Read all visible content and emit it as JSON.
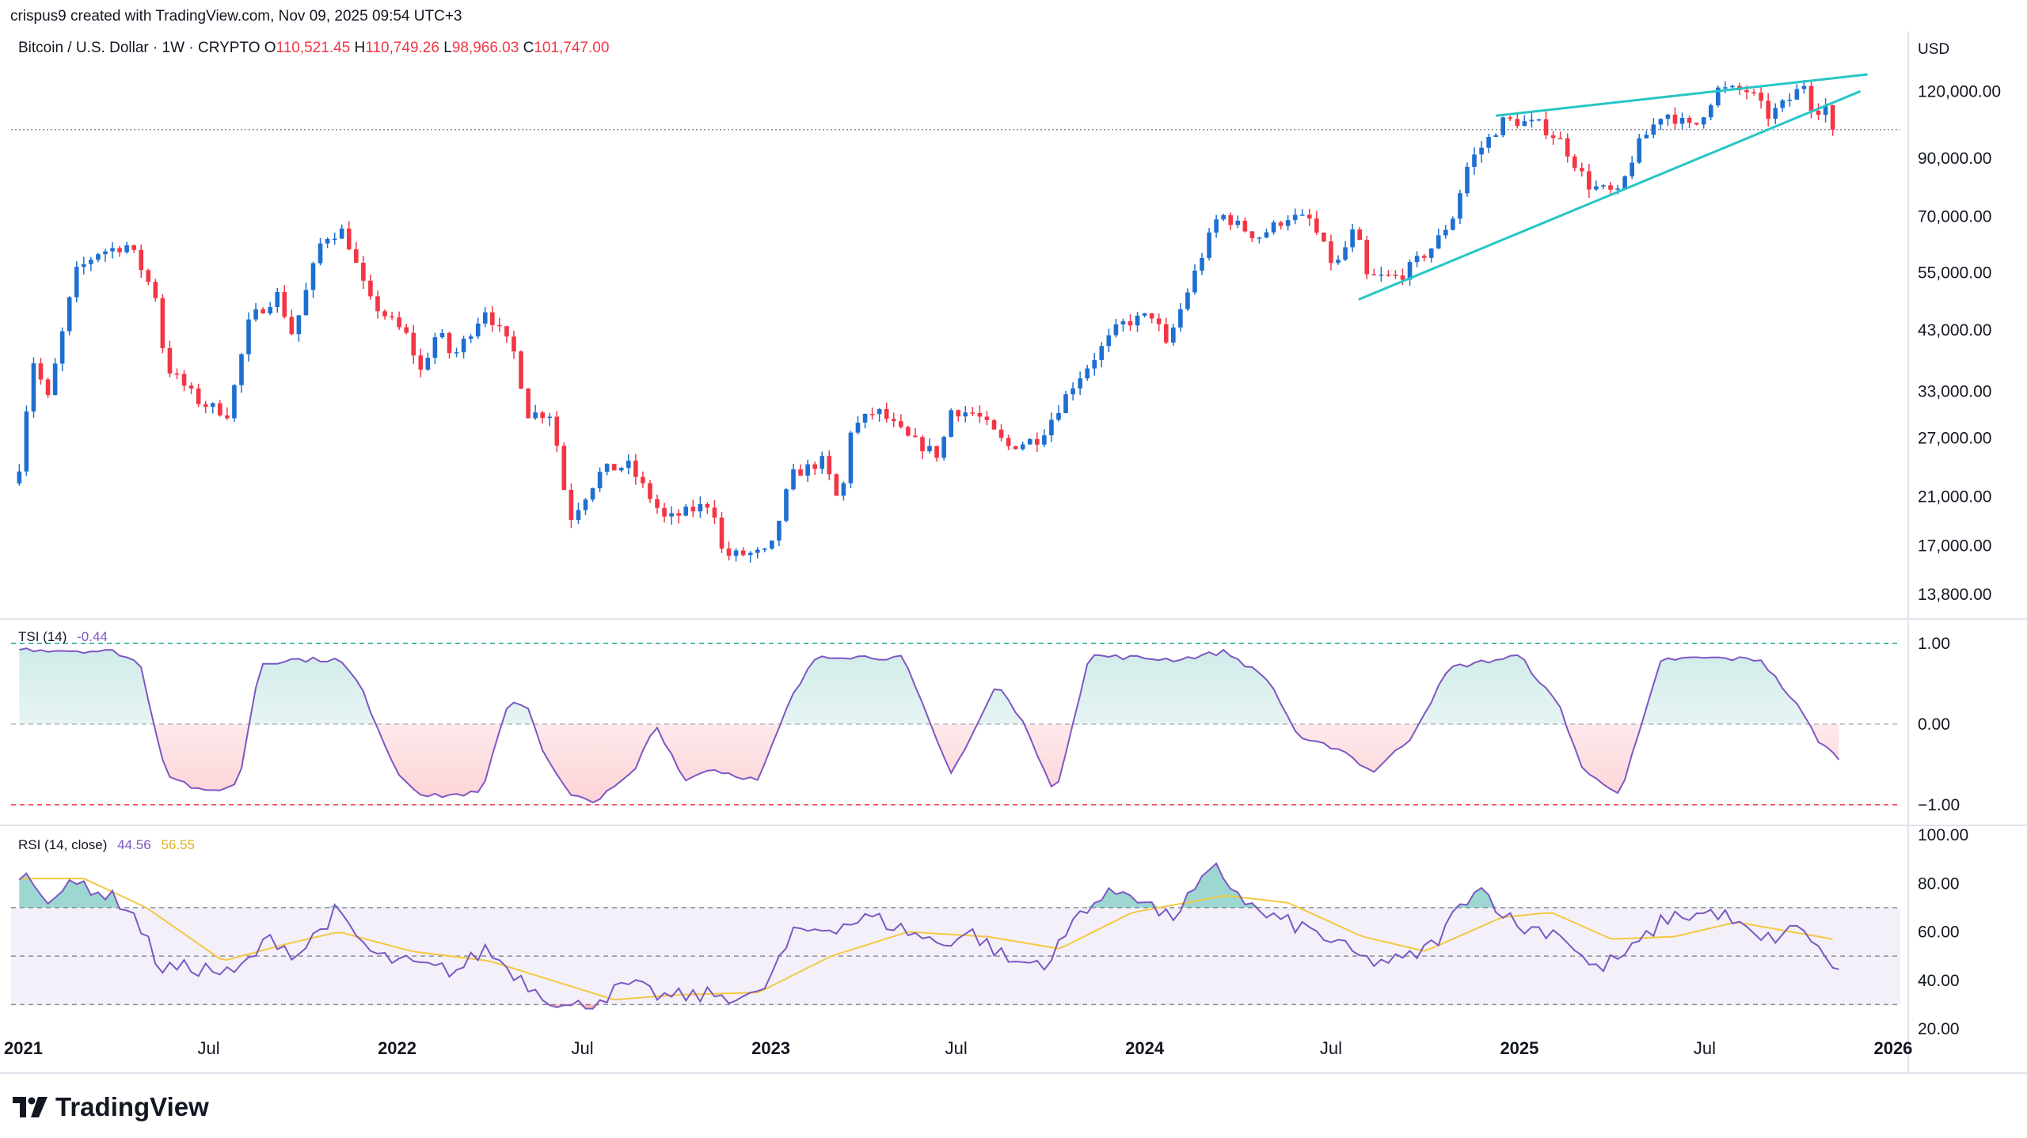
{
  "header": {
    "created_by": "crispus9 created with TradingView.com, Nov 09, 2025 09:54 UTC+3",
    "symbol": "Bitcoin / U.S. Dollar · 1W · CRYPTO",
    "ohlc": [
      {
        "label": "O",
        "value": "110,521.45"
      },
      {
        "label": "H",
        "value": "110,749.26"
      },
      {
        "label": "L",
        "value": "98,966.03"
      },
      {
        "label": "C",
        "value": "101,747.00"
      }
    ],
    "currency": "USD"
  },
  "branding": {
    "logo_text": "TradingView"
  },
  "colors": {
    "up": "#1e6fd1",
    "down": "#f23645",
    "wedge": "#26c6c6",
    "tsi": "#7e57c2",
    "rsi": "#7e57c2",
    "rsi_ma": "#f5c842",
    "grid_dash": "#b2b5be"
  },
  "chart_data": [
    {
      "type": "candlestick",
      "title": "Bitcoin / U.S. Dollar · 1W · CRYPTO",
      "scale": "log",
      "currency": "USD",
      "ylim": [
        12500,
        140000
      ],
      "xlim": [
        "2020-12-20",
        "2026-01-08"
      ],
      "x_ticks": [
        {
          "label": "2021",
          "date": "2021-01-01",
          "bold": true
        },
        {
          "label": "Jul",
          "date": "2021-07-01",
          "bold": false
        },
        {
          "label": "2022",
          "date": "2022-01-01",
          "bold": true
        },
        {
          "label": "Jul",
          "date": "2022-07-01",
          "bold": false
        },
        {
          "label": "2023",
          "date": "2023-01-01",
          "bold": true
        },
        {
          "label": "Jul",
          "date": "2023-07-01",
          "bold": false
        },
        {
          "label": "2024",
          "date": "2024-01-01",
          "bold": true
        },
        {
          "label": "Jul",
          "date": "2024-07-01",
          "bold": false
        },
        {
          "label": "2025",
          "date": "2025-01-01",
          "bold": true
        },
        {
          "label": "Jul",
          "date": "2025-07-01",
          "bold": false
        },
        {
          "label": "2026",
          "date": "2026-01-01",
          "bold": true
        }
      ],
      "y_ticks": [
        {
          "label": "120,000.00",
          "value": 120000
        },
        {
          "label": "90,000.00",
          "value": 90000
        },
        {
          "label": "70,000.00",
          "value": 70000
        },
        {
          "label": "55,000.00",
          "value": 55000
        },
        {
          "label": "43,000.00",
          "value": 43000
        },
        {
          "label": "33,000.00",
          "value": 33000
        },
        {
          "label": "27,000.00",
          "value": 27000
        },
        {
          "label": "21,000.00",
          "value": 21000
        },
        {
          "label": "17,000.00",
          "value": 17000
        },
        {
          "label": "13,800.00",
          "value": 13800
        }
      ],
      "last_close": 101747,
      "price_path": [
        [
          "2020-12-28",
          24000
        ],
        [
          "2021-01-10",
          38000
        ],
        [
          "2021-01-25",
          32000
        ],
        [
          "2021-02-21",
          55000
        ],
        [
          "2021-03-14",
          60000
        ],
        [
          "2021-04-14",
          62000
        ],
        [
          "2021-05-12",
          49000
        ],
        [
          "2021-05-19",
          37000
        ],
        [
          "2021-06-22",
          31500
        ],
        [
          "2021-07-20",
          30000
        ],
        [
          "2021-08-10",
          45000
        ],
        [
          "2021-09-06",
          50000
        ],
        [
          "2021-09-21",
          42000
        ],
        [
          "2021-10-20",
          64000
        ],
        [
          "2021-11-10",
          66000
        ],
        [
          "2021-12-04",
          49000
        ],
        [
          "2022-01-10",
          42000
        ],
        [
          "2022-01-24",
          36000
        ],
        [
          "2022-02-10",
          43000
        ],
        [
          "2022-02-24",
          38000
        ],
        [
          "2022-03-28",
          47000
        ],
        [
          "2022-04-25",
          39000
        ],
        [
          "2022-05-09",
          30000
        ],
        [
          "2022-06-01",
          30000
        ],
        [
          "2022-06-18",
          19000
        ],
        [
          "2022-07-20",
          23500
        ],
        [
          "2022-08-15",
          24000
        ],
        [
          "2022-09-20",
          19000
        ],
        [
          "2022-11-05",
          20500
        ],
        [
          "2022-11-15",
          16300
        ],
        [
          "2022-12-31",
          16500
        ],
        [
          "2023-01-21",
          23000
        ],
        [
          "2023-02-21",
          24500
        ],
        [
          "2023-03-10",
          20000
        ],
        [
          "2023-03-20",
          28000
        ],
        [
          "2023-04-14",
          30500
        ],
        [
          "2023-05-15",
          27000
        ],
        [
          "2023-06-15",
          25000
        ],
        [
          "2023-06-25",
          30500
        ],
        [
          "2023-07-20",
          30000
        ],
        [
          "2023-08-20",
          26000
        ],
        [
          "2023-09-20",
          27000
        ],
        [
          "2023-10-23",
          34000
        ],
        [
          "2023-12-08",
          44000
        ],
        [
          "2024-01-10",
          46000
        ],
        [
          "2024-01-22",
          40000
        ],
        [
          "2024-02-14",
          52000
        ],
        [
          "2024-03-01",
          62000
        ],
        [
          "2024-03-14",
          71000
        ],
        [
          "2024-04-20",
          64000
        ],
        [
          "2024-05-20",
          70000
        ],
        [
          "2024-06-10",
          69000
        ],
        [
          "2024-07-05",
          56000
        ],
        [
          "2024-07-25",
          67000
        ],
        [
          "2024-08-05",
          54000
        ],
        [
          "2024-09-06",
          54000
        ],
        [
          "2024-10-10",
          62000
        ],
        [
          "2024-10-28",
          70000
        ],
        [
          "2024-11-12",
          88000
        ],
        [
          "2024-12-17",
          106000
        ],
        [
          "2025-01-20",
          104000
        ],
        [
          "2025-02-10",
          97000
        ],
        [
          "2025-03-10",
          80000
        ],
        [
          "2025-04-08",
          77000
        ],
        [
          "2025-04-25",
          94000
        ],
        [
          "2025-05-22",
          110000
        ],
        [
          "2025-06-20",
          102000
        ],
        [
          "2025-07-14",
          121000
        ],
        [
          "2025-08-14",
          120000
        ],
        [
          "2025-09-01",
          108000
        ],
        [
          "2025-09-20",
          115000
        ],
        [
          "2025-10-06",
          124000
        ],
        [
          "2025-10-15",
          110000
        ],
        [
          "2025-10-28",
          113000
        ],
        [
          "2025-11-09",
          101747
        ]
      ],
      "annotations": [
        {
          "type": "trendline",
          "name": "wedge-upper",
          "from": [
            "2024-12-09",
            108000
          ],
          "to": [
            "2025-12-07",
            129000
          ]
        },
        {
          "type": "trendline",
          "name": "wedge-lower",
          "from": [
            "2024-07-28",
            49000
          ],
          "to": [
            "2025-11-30",
            120000
          ]
        }
      ]
    },
    {
      "type": "line",
      "name": "TSI (14)",
      "value_label": "-0.44",
      "ylim": [
        -1.05,
        1.05
      ],
      "y_ticks": [
        {
          "label": "1.00",
          "value": 1
        },
        {
          "label": "0.00",
          "value": 0
        },
        {
          "label": "−1.00",
          "value": -1
        }
      ],
      "levels": [
        1,
        0,
        -1
      ],
      "path": [
        [
          "2020-12-28",
          0.93
        ],
        [
          "2021-04-01",
          0.9
        ],
        [
          "2021-04-25",
          0.75
        ],
        [
          "2021-05-20",
          -0.6
        ],
        [
          "2021-06-25",
          -0.85
        ],
        [
          "2021-07-30",
          -0.75
        ],
        [
          "2021-08-20",
          0.75
        ],
        [
          "2021-09-20",
          0.8
        ],
        [
          "2021-11-05",
          0.8
        ],
        [
          "2021-11-25",
          0.5
        ],
        [
          "2022-01-01",
          -0.6
        ],
        [
          "2022-01-28",
          -0.9
        ],
        [
          "2022-03-25",
          -0.85
        ],
        [
          "2022-04-20",
          0.3
        ],
        [
          "2022-05-10",
          0.2
        ],
        [
          "2022-05-25",
          -0.4
        ],
        [
          "2022-06-20",
          -0.9
        ],
        [
          "2022-07-15",
          -0.95
        ],
        [
          "2022-08-20",
          -0.6
        ],
        [
          "2022-09-10",
          0.0
        ],
        [
          "2022-10-10",
          -0.7
        ],
        [
          "2022-11-01",
          -0.55
        ],
        [
          "2022-12-20",
          -0.7
        ],
        [
          "2023-01-20",
          0.3
        ],
        [
          "2023-02-15",
          0.85
        ],
        [
          "2023-05-10",
          0.82
        ],
        [
          "2023-06-25",
          -0.6
        ],
        [
          "2023-07-10",
          -0.3
        ],
        [
          "2023-08-10",
          0.5
        ],
        [
          "2023-09-10",
          -0.1
        ],
        [
          "2023-10-05",
          -0.9
        ],
        [
          "2023-11-08",
          0.85
        ],
        [
          "2024-02-01",
          0.8
        ],
        [
          "2024-03-20",
          0.9
        ],
        [
          "2024-05-01",
          0.55
        ],
        [
          "2024-06-01",
          -0.2
        ],
        [
          "2024-07-10",
          -0.3
        ],
        [
          "2024-08-10",
          -0.6
        ],
        [
          "2024-09-15",
          -0.2
        ],
        [
          "2024-10-25",
          0.7
        ],
        [
          "2025-01-01",
          0.85
        ],
        [
          "2025-02-10",
          0.2
        ],
        [
          "2025-03-05",
          -0.6
        ],
        [
          "2025-04-10",
          -0.85
        ],
        [
          "2025-05-20",
          0.8
        ],
        [
          "2025-07-01",
          0.82
        ],
        [
          "2025-08-25",
          0.8
        ],
        [
          "2025-10-01",
          0.2
        ],
        [
          "2025-10-20",
          -0.2
        ],
        [
          "2025-11-09",
          -0.44
        ]
      ]
    },
    {
      "type": "line",
      "name": "RSI (14, close)",
      "value_labels": [
        "44.56",
        "56.55"
      ],
      "series_labels": [
        "44.56",
        "56.55"
      ],
      "ylim": [
        20,
        100
      ],
      "y_ticks": [
        {
          "label": "100.00",
          "value": 100
        },
        {
          "label": "80.00",
          "value": 80
        },
        {
          "label": "60.00",
          "value": 60
        },
        {
          "label": "40.00",
          "value": 40
        },
        {
          "label": "20.00",
          "value": 20
        }
      ],
      "band": [
        30,
        70
      ],
      "levels": [
        70,
        50,
        30
      ],
      "rsi_path": [
        [
          "2020-12-28",
          85
        ],
        [
          "2021-01-25",
          75
        ],
        [
          "2021-03-01",
          80
        ],
        [
          "2021-04-15",
          70
        ],
        [
          "2021-05-15",
          45
        ],
        [
          "2021-06-25",
          45
        ],
        [
          "2021-07-25",
          42
        ],
        [
          "2021-09-01",
          58
        ],
        [
          "2021-09-25",
          50
        ],
        [
          "2021-11-01",
          68
        ],
        [
          "2021-12-10",
          50
        ],
        [
          "2022-02-01",
          45
        ],
        [
          "2022-03-01",
          44
        ],
        [
          "2022-03-28",
          53
        ],
        [
          "2022-05-10",
          38
        ],
        [
          "2022-06-18",
          28
        ],
        [
          "2022-07-15",
          32
        ],
        [
          "2022-08-15",
          38
        ],
        [
          "2022-09-20",
          33
        ],
        [
          "2022-11-10",
          34
        ],
        [
          "2022-12-20",
          33
        ],
        [
          "2023-01-25",
          60
        ],
        [
          "2023-03-01",
          62
        ],
        [
          "2023-04-10",
          66
        ],
        [
          "2023-06-15",
          55
        ],
        [
          "2023-07-15",
          60
        ],
        [
          "2023-08-25",
          47
        ],
        [
          "2023-10-01",
          48
        ],
        [
          "2023-11-01",
          70
        ],
        [
          "2023-12-15",
          78
        ],
        [
          "2024-01-25",
          65
        ],
        [
          "2024-03-10",
          86
        ],
        [
          "2024-04-20",
          68
        ],
        [
          "2024-06-15",
          60
        ],
        [
          "2024-08-05",
          48
        ],
        [
          "2024-09-10",
          48
        ],
        [
          "2024-10-10",
          55
        ],
        [
          "2024-11-20",
          80
        ],
        [
          "2024-12-30",
          62
        ],
        [
          "2025-02-10",
          60
        ],
        [
          "2025-03-15",
          44
        ],
        [
          "2025-04-20",
          52
        ],
        [
          "2025-05-25",
          66
        ],
        [
          "2025-07-15",
          68
        ],
        [
          "2025-08-25",
          56
        ],
        [
          "2025-10-06",
          62
        ],
        [
          "2025-10-20",
          52
        ],
        [
          "2025-11-09",
          44.56
        ]
      ],
      "ma_path": [
        [
          "2020-12-28",
          82
        ],
        [
          "2021-03-01",
          82
        ],
        [
          "2021-05-01",
          70
        ],
        [
          "2021-07-15",
          48
        ],
        [
          "2021-09-15",
          55
        ],
        [
          "2021-11-05",
          60
        ],
        [
          "2022-01-15",
          52
        ],
        [
          "2022-04-01",
          48
        ],
        [
          "2022-06-01",
          40
        ],
        [
          "2022-08-01",
          32
        ],
        [
          "2022-10-01",
          34
        ],
        [
          "2022-12-20",
          35
        ],
        [
          "2023-03-01",
          50
        ],
        [
          "2023-05-15",
          60
        ],
        [
          "2023-08-01",
          58
        ],
        [
          "2023-10-10",
          53
        ],
        [
          "2023-12-20",
          68
        ],
        [
          "2024-03-20",
          75
        ],
        [
          "2024-05-20",
          72
        ],
        [
          "2024-08-01",
          58
        ],
        [
          "2024-10-01",
          52
        ],
        [
          "2024-12-15",
          66
        ],
        [
          "2025-02-01",
          68
        ],
        [
          "2025-04-01",
          57
        ],
        [
          "2025-06-01",
          58
        ],
        [
          "2025-08-01",
          64
        ],
        [
          "2025-11-09",
          56.55
        ]
      ]
    }
  ]
}
